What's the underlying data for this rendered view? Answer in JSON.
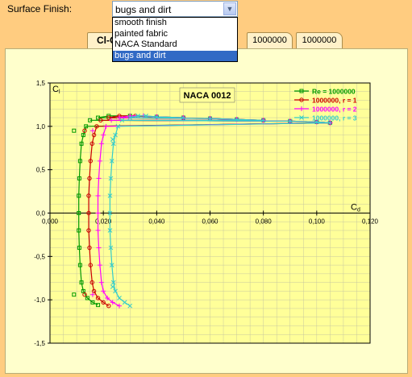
{
  "controls": {
    "surface_finish_label": "Surface Finish:",
    "selected": "bugs and dirt",
    "options": [
      "smooth finish",
      "painted fabric",
      "NACA Standard",
      "bugs and dirt"
    ]
  },
  "tabs": [
    "Cl-Cd",
    "1000000",
    "1000000"
  ],
  "colors": {
    "background": "#ffcc80",
    "panel": "#ffffcc",
    "plot_bg": "#ffff99",
    "selection": "#316ac5"
  },
  "chart_data": {
    "type": "line",
    "title": "NACA 0012",
    "xlabel": "Cd",
    "ylabel": "Cl",
    "xlim": [
      0,
      0.12
    ],
    "ylim": [
      -1.5,
      1.5
    ],
    "x_ticks": [
      "0,000",
      "0,020",
      "0,040",
      "0,060",
      "0,080",
      "0,100",
      "0,120"
    ],
    "y_ticks": [
      "1,5",
      "1,0",
      "0,5",
      "0,0",
      "-0,5",
      "-1,0",
      "-1,5"
    ],
    "grid": true,
    "legend_position": "top-right",
    "series": [
      {
        "name": "Re = 1000000",
        "color": "#009900",
        "marker": "square",
        "points": [
          [
            0.0108,
            0
          ],
          [
            0.0108,
            0.2
          ],
          [
            0.011,
            0.4
          ],
          [
            0.0113,
            0.6
          ],
          [
            0.0118,
            0.8
          ],
          [
            0.0125,
            0.9
          ],
          [
            0.0135,
            1.0
          ],
          [
            0.015,
            1.07
          ],
          [
            0.018,
            1.1
          ],
          [
            0.022,
            1.12
          ],
          [
            0.03,
            1.12
          ],
          [
            0.04,
            1.11
          ],
          [
            0.05,
            1.1
          ],
          [
            0.06,
            1.09
          ],
          [
            0.07,
            1.08
          ],
          [
            0.08,
            1.07
          ],
          [
            0.09,
            1.06
          ],
          [
            0.1,
            1.05
          ],
          [
            0.105,
            1.04
          ],
          [
            0.0108,
            -0.2
          ],
          [
            0.011,
            -0.4
          ],
          [
            0.0113,
            -0.6
          ],
          [
            0.0118,
            -0.8
          ],
          [
            0.0125,
            -0.9
          ],
          [
            0.014,
            -0.98
          ],
          [
            0.016,
            -1.03
          ],
          [
            0.018,
            -1.06
          ],
          [
            0.009,
            0.95
          ],
          [
            0.009,
            -0.94
          ]
        ]
      },
      {
        "name": "1000000, r = 1",
        "color": "#cc0000",
        "marker": "circle",
        "points": [
          [
            0.0145,
            0
          ],
          [
            0.0145,
            0.2
          ],
          [
            0.0148,
            0.4
          ],
          [
            0.0152,
            0.6
          ],
          [
            0.0158,
            0.8
          ],
          [
            0.0165,
            0.9
          ],
          [
            0.0175,
            1.0
          ],
          [
            0.019,
            1.07
          ],
          [
            0.022,
            1.1
          ],
          [
            0.026,
            1.12
          ],
          [
            0.032,
            1.12
          ],
          [
            0.04,
            1.11
          ],
          [
            0.05,
            1.1
          ],
          [
            0.06,
            1.09
          ],
          [
            0.07,
            1.08
          ],
          [
            0.08,
            1.07
          ],
          [
            0.09,
            1.06
          ],
          [
            0.1,
            1.05
          ],
          [
            0.105,
            1.04
          ],
          [
            0.0145,
            -0.2
          ],
          [
            0.0148,
            -0.4
          ],
          [
            0.0152,
            -0.6
          ],
          [
            0.0158,
            -0.8
          ],
          [
            0.0165,
            -0.9
          ],
          [
            0.018,
            -0.98
          ],
          [
            0.02,
            -1.03
          ],
          [
            0.022,
            -1.07
          ],
          [
            0.013,
            0.95
          ],
          [
            0.013,
            -0.94
          ]
        ]
      },
      {
        "name": "1000000, r = 2",
        "color": "#ff00ff",
        "marker": "plus",
        "points": [
          [
            0.018,
            0
          ],
          [
            0.018,
            0.2
          ],
          [
            0.0183,
            0.4
          ],
          [
            0.0187,
            0.6
          ],
          [
            0.0193,
            0.8
          ],
          [
            0.02,
            0.9
          ],
          [
            0.021,
            1.0
          ],
          [
            0.023,
            1.07
          ],
          [
            0.026,
            1.1
          ],
          [
            0.03,
            1.12
          ],
          [
            0.035,
            1.12
          ],
          [
            0.04,
            1.11
          ],
          [
            0.05,
            1.1
          ],
          [
            0.06,
            1.09
          ],
          [
            0.07,
            1.08
          ],
          [
            0.08,
            1.07
          ],
          [
            0.09,
            1.06
          ],
          [
            0.1,
            1.05
          ],
          [
            0.105,
            1.04
          ],
          [
            0.018,
            -0.2
          ],
          [
            0.0183,
            -0.4
          ],
          [
            0.0187,
            -0.6
          ],
          [
            0.0193,
            -0.8
          ],
          [
            0.02,
            -0.9
          ],
          [
            0.0215,
            -0.98
          ],
          [
            0.0235,
            -1.03
          ],
          [
            0.026,
            -1.07
          ],
          [
            0.016,
            0.95
          ],
          [
            0.016,
            -0.94
          ]
        ]
      },
      {
        "name": "1000000, r = 3",
        "color": "#33cccc",
        "marker": "cross",
        "points": [
          [
            0.0225,
            0
          ],
          [
            0.0225,
            0.2
          ],
          [
            0.0228,
            0.4
          ],
          [
            0.0232,
            0.6
          ],
          [
            0.0238,
            0.8
          ],
          [
            0.0245,
            0.9
          ],
          [
            0.0255,
            1.0
          ],
          [
            0.027,
            1.07
          ],
          [
            0.03,
            1.1
          ],
          [
            0.033,
            1.12
          ],
          [
            0.036,
            1.12
          ],
          [
            0.04,
            1.11
          ],
          [
            0.05,
            1.1
          ],
          [
            0.06,
            1.09
          ],
          [
            0.07,
            1.08
          ],
          [
            0.08,
            1.07
          ],
          [
            0.09,
            1.06
          ],
          [
            0.1,
            1.05
          ],
          [
            0.105,
            1.04
          ],
          [
            0.0225,
            -0.2
          ],
          [
            0.0228,
            -0.4
          ],
          [
            0.0232,
            -0.6
          ],
          [
            0.0238,
            -0.8
          ],
          [
            0.0245,
            -0.9
          ],
          [
            0.026,
            -0.98
          ],
          [
            0.028,
            -1.03
          ],
          [
            0.03,
            -1.07
          ],
          [
            0.0235,
            0.85
          ],
          [
            0.0235,
            -0.85
          ]
        ]
      }
    ]
  }
}
